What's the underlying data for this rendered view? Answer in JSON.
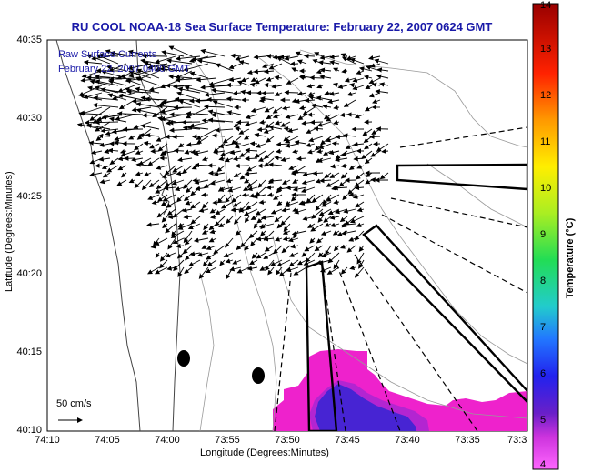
{
  "title": "RU COOL  NOAA-18  Sea Surface Temperature:  February 22, 2007 0624 GMT",
  "legend": {
    "line1": "Raw Surface Currents",
    "line2": "February 22, 2007 0400 GMT"
  },
  "axes": {
    "xlabel": "Longitude (Degrees:Minutes)",
    "ylabel": "Latitude (Degrees:Minutes)",
    "xticks": [
      "74:10",
      "74:05",
      "74:00",
      "73:55",
      "73:50",
      "73:45",
      "73:40",
      "73:35",
      "73:3"
    ],
    "yticks": [
      "40:35",
      "40:30",
      "40:25",
      "40:20",
      "40:15",
      "40:10"
    ]
  },
  "colorbar": {
    "label": "Temperature (°C)",
    "ticks": [
      "14",
      "13",
      "12",
      "11",
      "10",
      "9",
      "8",
      "7",
      "6",
      "5",
      "4"
    ],
    "min": 4,
    "max": 14
  },
  "scale": {
    "label": "50 cm/s"
  },
  "colors": {
    "title_text": "#1a1aa8",
    "land_contour": "#444444",
    "bathymetry": "#999999",
    "warm_patch": "#ee22cc",
    "cool_core": "#2a1fd0"
  }
}
